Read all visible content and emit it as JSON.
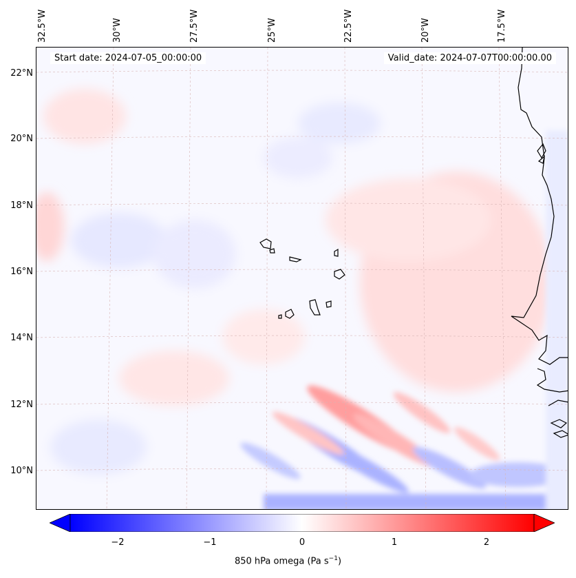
{
  "map": {
    "start_date": "Start date: 2024-07-05_00:00:00",
    "valid_date": "Valid_date: 2024-07-07T00:00:00.00",
    "lon_labels": [
      "32.5°W",
      "30°W",
      "27.5°W",
      "25°W",
      "22.5°W",
      "20°W",
      "17.5°W"
    ],
    "lat_labels": [
      "22°N",
      "20°N",
      "18°N",
      "16°N",
      "14°N",
      "12°N",
      "10°N"
    ],
    "gridline_color": "#d8b4b4",
    "coastline_color": "#000000"
  },
  "colorbar": {
    "label_prefix": "850 hPa omega (Pa s",
    "label_exp": "−1",
    "label_suffix": ")",
    "ticks": [
      "−2",
      "−1",
      "0",
      "1",
      "2"
    ],
    "range": [
      -2.6,
      2.6
    ],
    "colors": {
      "min": "#0000ff",
      "mid": "#ffffff",
      "max": "#ff0000"
    },
    "extend": "both"
  }
}
